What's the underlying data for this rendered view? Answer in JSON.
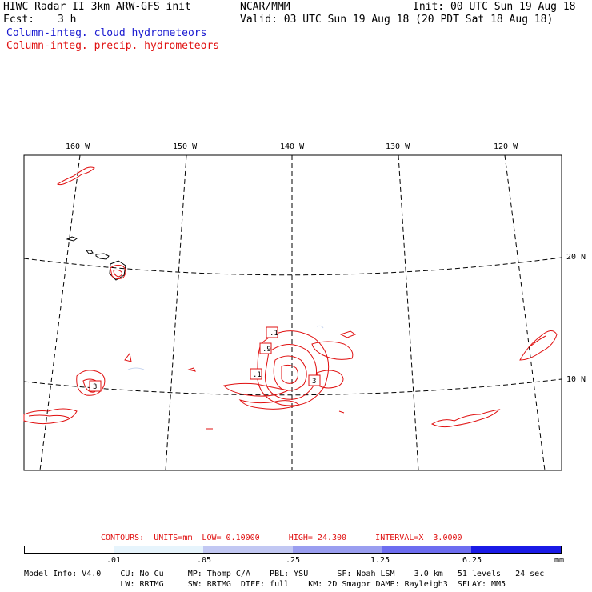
{
  "header": {
    "title": "HIWC Radar II 3km ARW-GFS init",
    "org": "NCAR/MMM",
    "init": "Init: 00 UTC Sun 19 Aug 18",
    "fcst_label": "Fcst:",
    "fcst_value": "3 h",
    "valid": "Valid: 03 UTC Sun 19 Aug 18 (20 PDT Sat 18 Aug 18)",
    "cloud_label": "Column-integ. cloud hydrometeors",
    "precip_label": "Column-integ. precip. hydrometeors"
  },
  "map": {
    "lon_labels": [
      "160 W",
      "150 W",
      "140 W",
      "130 W",
      "120 W"
    ],
    "lat_labels": [
      "20 N",
      "10 N"
    ],
    "contour_labels": [
      ".1",
      ".9",
      ".1",
      "3",
      "3"
    ]
  },
  "contours_info": "CONTOURS:  UNITS=mm  LOW= 0.10000      HIGH= 24.300      INTERVAL=X  3.0000",
  "colorbar": {
    "colors": [
      "#ffffff",
      "#e6f4fc",
      "#c2c8f3",
      "#9a9ef0",
      "#6d6df0",
      "#4646ee",
      "#1a1ae6"
    ],
    "labels": [
      ".01",
      ".05",
      ".25",
      "1.25",
      "6.25"
    ],
    "units": "mm"
  },
  "model_info": {
    "line1": "Model Info: V4.0    CU: No Cu     MP: Thomp C/A    PBL: YSU      SF: Noah LSM    3.0 km   51 levels   24 sec",
    "line2": "                    LW: RRTMG     SW: RRTMG  DIFF: full    KM: 2D Smagor DAMP: Rayleigh3  SFLAY: MM5"
  },
  "colors": {
    "cloud": "#1a1ad0",
    "precip": "#e01010"
  }
}
